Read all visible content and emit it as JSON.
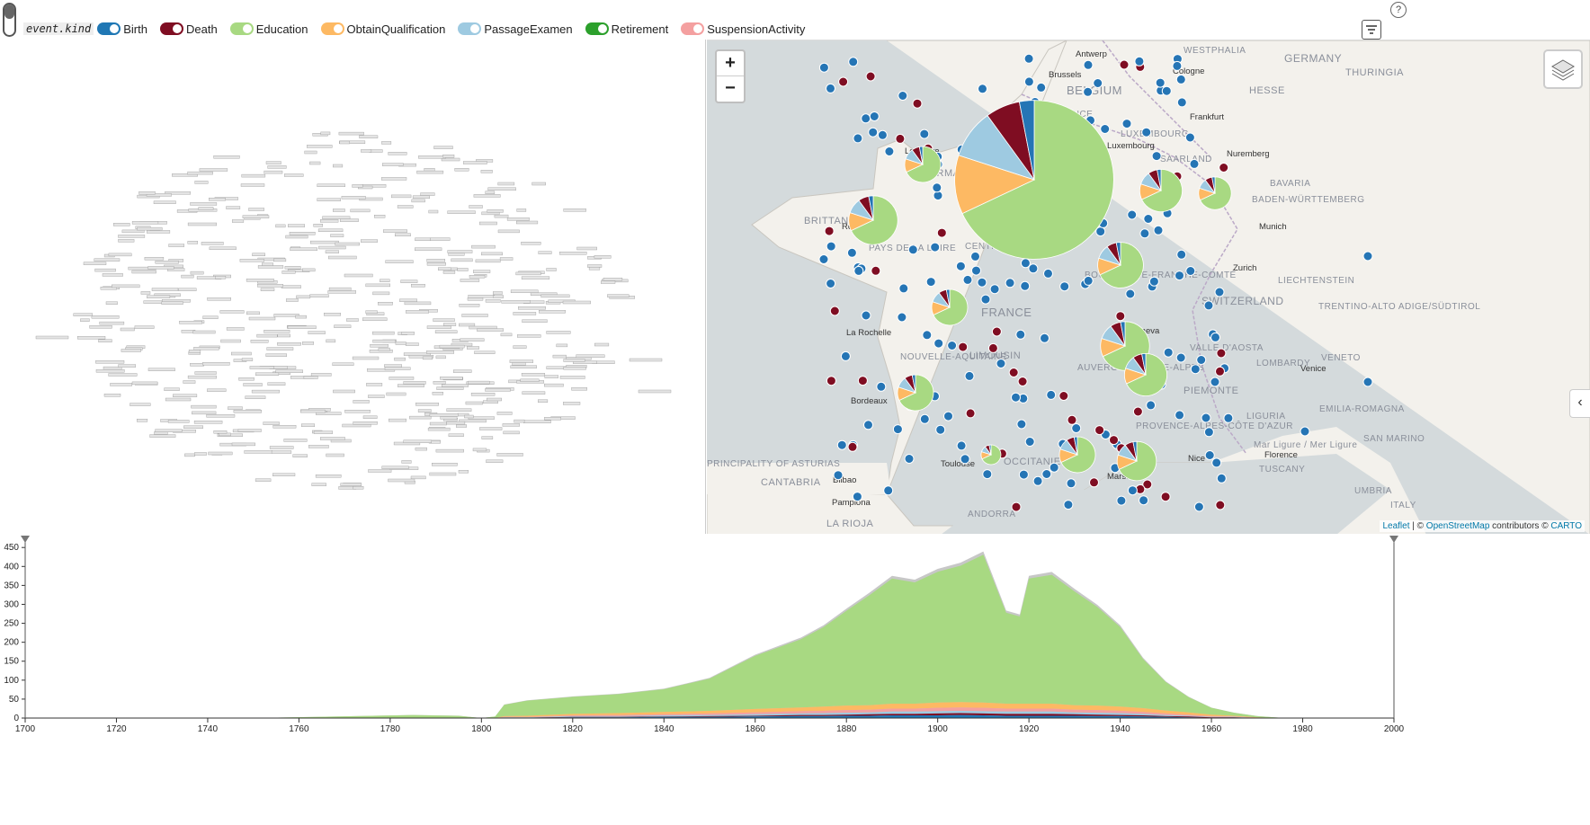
{
  "toolbar": {
    "field_label": "event.kind",
    "legend": [
      {
        "label": "Birth",
        "color": "#1f77b4"
      },
      {
        "label": "Death",
        "color": "#7f0d22"
      },
      {
        "label": "Education",
        "color": "#a8d982"
      },
      {
        "label": "ObtainQualification",
        "color": "#fdb963"
      },
      {
        "label": "PassageExamen",
        "color": "#9ecae1"
      },
      {
        "label": "Retirement",
        "color": "#2ca02c"
      },
      {
        "label": "SuspensionActivity",
        "color": "#f4a0a0"
      }
    ],
    "help_label": "?"
  },
  "map": {
    "zoom_in": "+",
    "zoom_out": "−",
    "side_toggle": "‹",
    "attribution": {
      "leaflet": "Leaflet",
      "sep1": " | © ",
      "osm": "OpenStreetMap",
      "contributors": " contributors © ",
      "carto": "CARTO"
    },
    "regions": [
      "GERMANY",
      "THURINGIA",
      "HESSE",
      "WESTPHALIA",
      "BELGIUM",
      "UPPER FRANCE",
      "LUXEMBOURG",
      "SAARLAND",
      "BAVARIA",
      "BADEN-WÜRTTEMBERG",
      "NORMANDY",
      "BRITTANY",
      "PAYS DE LA LOIRE",
      "CENTRE-VAL DE LOIRE",
      "FRANCE",
      "BOURGOGNE-FRANCHE-COMTÉ",
      "LIECHTENSTEIN",
      "SWITZERLAND",
      "TRENTINO-ALTO ADIGE/SÜDTIROL",
      "VALLE D'AOSTA",
      "LOMBARDY",
      "VENETO",
      "PIEMONTE",
      "LIMOUSIN",
      "AUVERGNE-RHÔNE-ALPES",
      "NOUVELLE-AQUITAINE",
      "PROVENCE-ALPES-CÔTE D'AZUR",
      "OCCITANIE",
      "EMILIA-ROMAGNA",
      "LIGURIA",
      "TUSCANY",
      "SAN MARINO",
      "UMBRIA",
      "ITALY",
      "CANTABRIA",
      "PRINCIPALITY OF ASTURIAS",
      "LA RIOJA",
      "ANDORRA",
      "Mar Ligure / Mer Ligure"
    ],
    "cities": [
      "Antwerp",
      "Brussels",
      "Cologne",
      "Frankfurt",
      "Luxembourg",
      "Nuremberg",
      "Munich",
      "Zurich",
      "Geneva",
      "Venice",
      "Le Havre",
      "Rennes",
      "La Rochelle",
      "Bordeaux",
      "Toulouse",
      "Marseille",
      "Nice",
      "Florence",
      "Bilbao",
      "Pamplona"
    ]
  },
  "timeline": {
    "y_ticks": [
      "0",
      "50",
      "100",
      "150",
      "200",
      "250",
      "300",
      "350",
      "400",
      "450"
    ],
    "x_ticks": [
      "1700",
      "1720",
      "1740",
      "1760",
      "1780",
      "1800",
      "1820",
      "1840",
      "1860",
      "1880",
      "1900",
      "1920",
      "1940",
      "1960",
      "1980",
      "2000"
    ]
  },
  "chart_data": {
    "type": "area",
    "stacked": true,
    "xlim": [
      1700,
      2000
    ],
    "ylim": [
      0,
      460
    ],
    "x": [
      1700,
      1750,
      1785,
      1795,
      1800,
      1803,
      1805,
      1810,
      1820,
      1830,
      1840,
      1850,
      1860,
      1870,
      1875,
      1880,
      1885,
      1890,
      1895,
      1900,
      1905,
      1910,
      1915,
      1918,
      1920,
      1925,
      1930,
      1935,
      1940,
      1945,
      1950,
      1955,
      1960,
      1965,
      1970,
      1975,
      1985
    ],
    "series": [
      {
        "name": "Birth",
        "color": "#1f77b4",
        "values": [
          0,
          0,
          0,
          0,
          0,
          0,
          1,
          1,
          2,
          2,
          3,
          3,
          4,
          5,
          5,
          6,
          6,
          7,
          7,
          7,
          8,
          7,
          6,
          6,
          6,
          6,
          6,
          5,
          5,
          4,
          3,
          2,
          1,
          1,
          0,
          0,
          0
        ]
      },
      {
        "name": "Death",
        "color": "#7f0d22",
        "values": [
          0,
          0,
          0,
          0,
          0,
          0,
          0,
          0,
          1,
          1,
          1,
          2,
          2,
          3,
          3,
          3,
          4,
          4,
          4,
          5,
          5,
          5,
          5,
          5,
          5,
          5,
          4,
          4,
          3,
          3,
          2,
          2,
          1,
          1,
          0,
          0,
          0
        ]
      },
      {
        "name": "PassageExamen",
        "color": "#9ecae1",
        "values": [
          0,
          0,
          0,
          0,
          0,
          0,
          1,
          1,
          2,
          2,
          3,
          3,
          4,
          4,
          5,
          5,
          5,
          6,
          6,
          6,
          6,
          6,
          6,
          6,
          6,
          6,
          5,
          5,
          5,
          4,
          3,
          2,
          1,
          1,
          0,
          0,
          0
        ]
      },
      {
        "name": "SuspensionActivity",
        "color": "#f4a0a0",
        "values": [
          0,
          0,
          0,
          0,
          0,
          0,
          1,
          1,
          2,
          3,
          3,
          4,
          5,
          6,
          6,
          7,
          7,
          8,
          8,
          9,
          9,
          9,
          8,
          8,
          8,
          8,
          7,
          7,
          6,
          5,
          4,
          3,
          2,
          1,
          1,
          0,
          0
        ]
      },
      {
        "name": "ObtainQualification",
        "color": "#fdb963",
        "values": [
          0,
          0,
          0,
          0,
          0,
          0,
          2,
          3,
          4,
          5,
          6,
          7,
          9,
          10,
          11,
          12,
          12,
          13,
          13,
          14,
          14,
          14,
          13,
          13,
          13,
          13,
          12,
          12,
          11,
          10,
          8,
          6,
          4,
          2,
          1,
          0,
          0
        ]
      },
      {
        "name": "Education",
        "color": "#a8d982",
        "values": [
          0,
          0,
          8,
          6,
          0,
          4,
          30,
          40,
          45,
          50,
          60,
          85,
          140,
          180,
          210,
          250,
          290,
          330,
          320,
          345,
          360,
          390,
          240,
          230,
          330,
          340,
          300,
          260,
          210,
          130,
          75,
          40,
          18,
          8,
          3,
          1,
          0
        ]
      }
    ]
  }
}
